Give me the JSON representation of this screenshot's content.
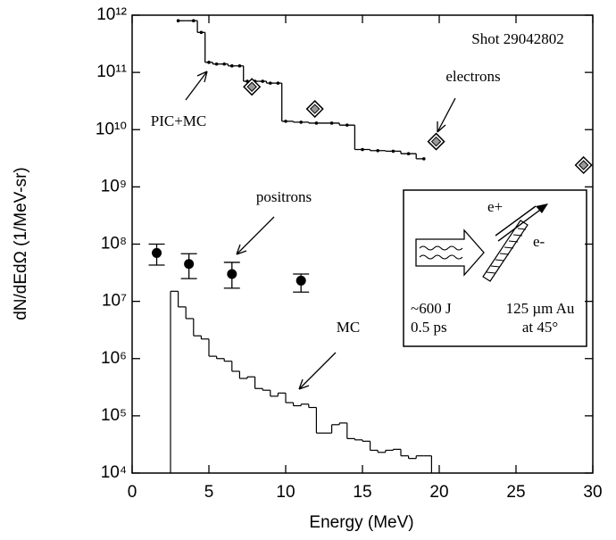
{
  "chart_data": {
    "type": "scatter",
    "x_label": "Energy  (MeV)",
    "y_label": "dN/dEdΩ  (1/MeV-sr)",
    "annotation": "Shot 29042802",
    "inset": {
      "e_plus": "e+",
      "e_minus": "e-",
      "energy": "~600 J",
      "duration": "0.5 ps",
      "target": "125 µm Au",
      "angle": "at 45°"
    },
    "xlim": [
      0,
      30
    ],
    "xticks": [
      0,
      5,
      10,
      15,
      20,
      25,
      30
    ],
    "ylim": [
      10000,
      1000000000000.0
    ],
    "log_y": true,
    "yticks": [
      {
        "value": 10000,
        "label": "10⁴"
      },
      {
        "value": 100000,
        "label": "10⁵"
      },
      {
        "value": 1000000,
        "label": "10⁶"
      },
      {
        "value": 10000000,
        "label": "10⁷"
      },
      {
        "value": 100000000,
        "label": "10⁸"
      },
      {
        "value": 1000000000,
        "label": "10⁹"
      },
      {
        "value": 10000000000,
        "label": "10¹⁰"
      },
      {
        "value": 100000000000,
        "label": "10¹¹"
      },
      {
        "value": 1000000000000,
        "label": "10¹²"
      }
    ],
    "series": [
      {
        "name": "PIC+MC",
        "type": "step",
        "color": "#000000",
        "x": [
          3.0,
          4.0,
          4.5,
          5.0,
          5.5,
          6.0,
          6.5,
          7.0,
          7.5,
          8.0,
          8.5,
          9.0,
          9.5,
          10.0,
          11.0,
          12.0,
          13.0,
          14.0,
          15.0,
          16.0,
          17.0,
          18.0,
          19.0
        ],
        "values": [
          800000000000.0,
          800000000000.0,
          500000000000.0,
          150000000000.0,
          140000000000.0,
          140000000000.0,
          130000000000.0,
          130000000000.0,
          70000000000.0,
          70000000000.0,
          70000000000.0,
          65000000000.0,
          65000000000.0,
          14000000000.0,
          13500000000.0,
          13000000000.0,
          13000000000.0,
          12000000000.0,
          4500000000.0,
          4300000000.0,
          4200000000.0,
          3800000000.0,
          3100000000.0
        ]
      },
      {
        "name": "electrons",
        "type": "diamond",
        "color": "#000000",
        "x": [
          7.8,
          11.9,
          19.8,
          29.4
        ],
        "values": [
          56000000000.0,
          23000000000.0,
          6200000000.0,
          2400000000.0
        ]
      },
      {
        "name": "positrons",
        "type": "errorbar",
        "color": "#000000",
        "x": [
          1.6,
          3.7,
          6.5,
          11.0
        ],
        "values": [
          70000000.0,
          45000000.0,
          30000000.0,
          23000000.0
        ],
        "lower": [
          43000000.0,
          25000000.0,
          17000000.0,
          14500000.0
        ],
        "upper": [
          100000000.0,
          68000000.0,
          48000000.0,
          30000000.0
        ]
      },
      {
        "name": "MC",
        "type": "histogram",
        "color": "#000000",
        "bins": [
          2.5,
          3.0,
          3.5,
          4.0,
          4.5,
          5.0,
          5.5,
          6.0,
          6.5,
          7.0,
          7.5,
          8.0,
          8.5,
          9.0,
          9.5,
          10.0,
          10.5,
          11.0,
          11.5,
          12.0,
          12.5,
          13.0,
          13.5,
          14.0,
          14.5,
          15.0,
          15.5,
          16.0,
          16.5,
          17.0,
          17.5,
          18.0,
          18.5,
          19.0,
          19.5
        ],
        "values": [
          15000000.0,
          8000000.0,
          5000000.0,
          2500000.0,
          2200000.0,
          1100000.0,
          1000000.0,
          900000.0,
          600000.0,
          450000.0,
          480000.0,
          300000.0,
          280000.0,
          220000.0,
          250000.0,
          170000.0,
          150000.0,
          160000.0,
          140000.0,
          50000.0,
          50000.0,
          70000.0,
          75000.0,
          40000.0,
          38000.0,
          36000.0,
          25000.0,
          23000.0,
          25000.0,
          26000.0,
          20000.0,
          18000.0,
          20000.0,
          20000.0
        ]
      }
    ]
  }
}
